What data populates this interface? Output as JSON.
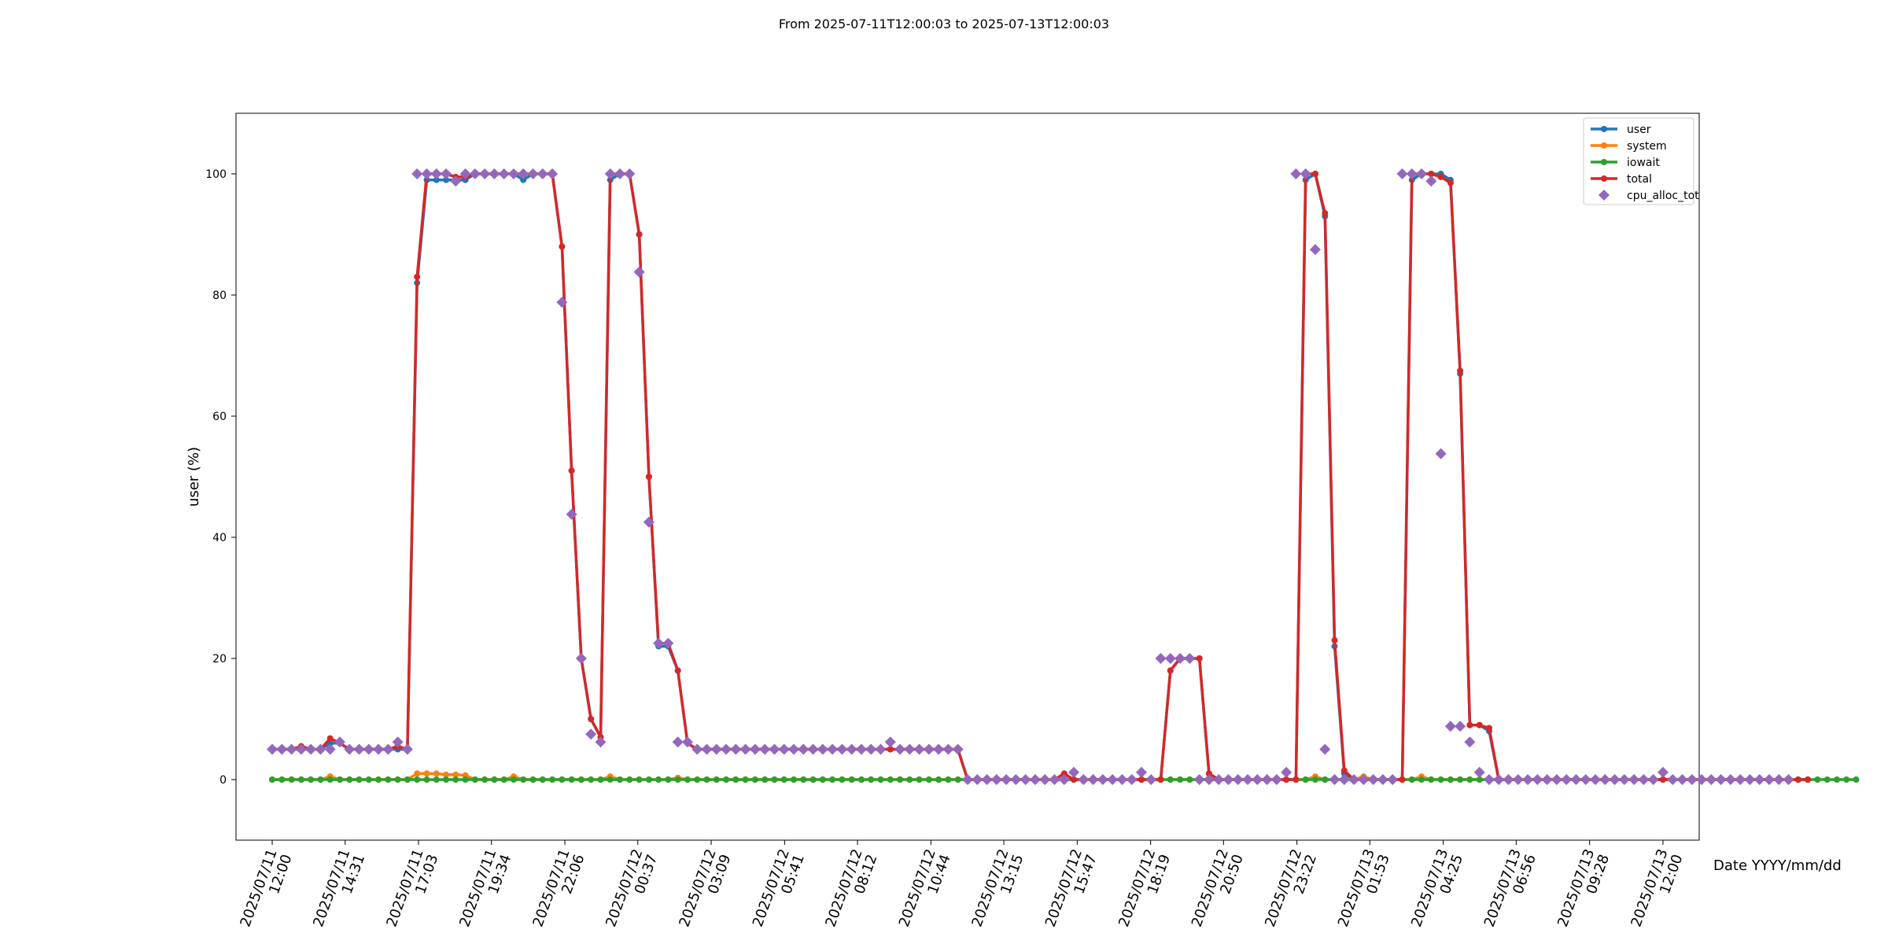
{
  "chart_data": {
    "type": "line",
    "title": "From 2025-07-11T12:00:03 to 2025-07-13T12:00:03",
    "xlabel": "Date YYYY/mm/dd",
    "ylabel": "user (%)",
    "ylim": [
      -10,
      110
    ],
    "yticks": [
      0,
      20,
      40,
      60,
      80,
      100
    ],
    "xlim": [
      "2025-07-11T10:45",
      "2025-07-13T13:15"
    ],
    "xticks": [
      {
        "t": "2025-07-11T12:00",
        "label": [
          "2025/07/11",
          "12:00"
        ]
      },
      {
        "t": "2025-07-11T14:31",
        "label": [
          "2025/07/11",
          "14:31"
        ]
      },
      {
        "t": "2025-07-11T17:03",
        "label": [
          "2025/07/11",
          "17:03"
        ]
      },
      {
        "t": "2025-07-11T19:34",
        "label": [
          "2025/07/11",
          "19:34"
        ]
      },
      {
        "t": "2025-07-11T22:06",
        "label": [
          "2025/07/11",
          "22:06"
        ]
      },
      {
        "t": "2025-07-12T00:37",
        "label": [
          "2025/07/12",
          "00:37"
        ]
      },
      {
        "t": "2025-07-12T03:09",
        "label": [
          "2025/07/12",
          "03:09"
        ]
      },
      {
        "t": "2025-07-12T05:41",
        "label": [
          "2025/07/12",
          "05:41"
        ]
      },
      {
        "t": "2025-07-12T08:12",
        "label": [
          "2025/07/12",
          "08:12"
        ]
      },
      {
        "t": "2025-07-12T10:44",
        "label": [
          "2025/07/12",
          "10:44"
        ]
      },
      {
        "t": "2025-07-12T13:15",
        "label": [
          "2025/07/12",
          "13:15"
        ]
      },
      {
        "t": "2025-07-12T15:47",
        "label": [
          "2025/07/12",
          "15:47"
        ]
      },
      {
        "t": "2025-07-12T18:19",
        "label": [
          "2025/07/12",
          "18:19"
        ]
      },
      {
        "t": "2025-07-12T20:50",
        "label": [
          "2025/07/12",
          "20:50"
        ]
      },
      {
        "t": "2025-07-12T23:22",
        "label": [
          "2025/07/12",
          "23:22"
        ]
      },
      {
        "t": "2025-07-13T01:53",
        "label": [
          "2025/07/13",
          "01:53"
        ]
      },
      {
        "t": "2025-07-13T04:25",
        "label": [
          "2025/07/13",
          "04:25"
        ]
      },
      {
        "t": "2025-07-13T06:56",
        "label": [
          "2025/07/13",
          "06:56"
        ]
      },
      {
        "t": "2025-07-13T09:28",
        "label": [
          "2025/07/13",
          "09:28"
        ]
      },
      {
        "t": "2025-07-13T12:00",
        "label": [
          "2025/07/13",
          "12:00"
        ]
      }
    ],
    "legend_position": "top-right",
    "grid": false,
    "start_time": "2025-07-11T12:00",
    "interval_minutes": 20,
    "series": [
      {
        "name": "user",
        "color": "#1f77b4",
        "style": "line-dot",
        "values": [
          5,
          5,
          5,
          5,
          5,
          5,
          6,
          6,
          5,
          5,
          5,
          5,
          5,
          5,
          5,
          82,
          99,
          99,
          99,
          99,
          99,
          100,
          100,
          100,
          100,
          100,
          99,
          100,
          100,
          100,
          88,
          51,
          20,
          10,
          7,
          99,
          100,
          100,
          90,
          50,
          22,
          22,
          18,
          6,
          5,
          5,
          5,
          5,
          5,
          5,
          5,
          5,
          5,
          5,
          5,
          5,
          5,
          5,
          5,
          5,
          5,
          5,
          5,
          5,
          5,
          5,
          5,
          5,
          5,
          5,
          5,
          5,
          0,
          0,
          0,
          0,
          0,
          0,
          0,
          0,
          0,
          0,
          0,
          0,
          0,
          0,
          0,
          0,
          0,
          0,
          0,
          0,
          0,
          18,
          20,
          20,
          20,
          1,
          0,
          0,
          0,
          0,
          0,
          0,
          0,
          0,
          0,
          99,
          100,
          93,
          22,
          1,
          0,
          0,
          0,
          0,
          0,
          0,
          99,
          100,
          100,
          100,
          99,
          67,
          9,
          9,
          8,
          0,
          0,
          0,
          0,
          0,
          0,
          0,
          0,
          0,
          0,
          0,
          0,
          0,
          0,
          0,
          0,
          0,
          0,
          0,
          0,
          0,
          0,
          0,
          0,
          0,
          0,
          0,
          0,
          0,
          0,
          0,
          0,
          0
        ]
      },
      {
        "name": "system",
        "color": "#ff7f0e",
        "style": "line-dot",
        "values": [
          0,
          0,
          0,
          0,
          0,
          0,
          0.5,
          0,
          0,
          0,
          0,
          0,
          0,
          0,
          0,
          1,
          1,
          1,
          0.8,
          0.8,
          0.7,
          0,
          0,
          0,
          0,
          0.5,
          0,
          0,
          0,
          0,
          0,
          0,
          0,
          0,
          0,
          0.5,
          0,
          0,
          0,
          0,
          0,
          0,
          0.3,
          0,
          0,
          0,
          0,
          0,
          0,
          0,
          0,
          0,
          0,
          0,
          0,
          0,
          0,
          0,
          0,
          0,
          0,
          0,
          0,
          0,
          0,
          0,
          0,
          0,
          0,
          0,
          0,
          0,
          0,
          0,
          0,
          0,
          0,
          0,
          0,
          0,
          0,
          0,
          0,
          0,
          0,
          0,
          0,
          0,
          0,
          0,
          0,
          0,
          0,
          0,
          0,
          0,
          0,
          0,
          0,
          0,
          0,
          0,
          0,
          0,
          0,
          0,
          0,
          0,
          0.5,
          0,
          0,
          0,
          0,
          0.5,
          0,
          0,
          0,
          0,
          0,
          0.5,
          0,
          0,
          0,
          0,
          0,
          0,
          0,
          0,
          0,
          0,
          0,
          0,
          0,
          0,
          0,
          0,
          0,
          0,
          0,
          0,
          0,
          0,
          0,
          0,
          0,
          0,
          0,
          0,
          0,
          0,
          0,
          0,
          0,
          0,
          0,
          0,
          0,
          0,
          0,
          0
        ]
      },
      {
        "name": "iowait",
        "color": "#2ca02c",
        "style": "line-dot",
        "values": [
          0,
          0,
          0,
          0,
          0,
          0,
          0,
          0,
          0,
          0,
          0,
          0,
          0,
          0,
          0,
          0,
          0,
          0,
          0,
          0,
          0,
          0,
          0,
          0,
          0,
          0,
          0,
          0,
          0,
          0,
          0,
          0,
          0,
          0,
          0,
          0,
          0,
          0,
          0,
          0,
          0,
          0,
          0,
          0,
          0,
          0,
          0,
          0,
          0,
          0,
          0,
          0,
          0,
          0,
          0,
          0,
          0,
          0,
          0,
          0,
          0,
          0,
          0,
          0,
          0,
          0,
          0,
          0,
          0,
          0,
          0,
          0,
          0,
          0,
          0,
          0,
          0,
          0,
          0,
          0,
          0,
          0,
          0,
          0,
          0,
          0,
          0,
          0,
          0,
          0,
          0,
          0,
          0,
          0,
          0,
          0,
          0,
          0,
          0,
          0,
          0,
          0,
          0,
          0,
          0,
          0,
          0,
          0,
          0,
          0,
          0,
          0,
          0,
          0,
          0,
          0,
          0,
          0,
          0,
          0,
          0,
          0,
          0,
          0,
          0,
          0,
          0,
          0,
          0,
          0,
          0,
          0,
          0,
          0,
          0,
          0,
          0,
          0,
          0,
          0,
          0,
          0,
          0,
          0,
          0,
          0,
          0,
          0,
          0,
          0,
          0,
          0,
          0,
          0,
          0,
          0,
          0,
          0,
          0,
          0,
          0,
          0,
          0,
          0,
          0
        ]
      },
      {
        "name": "total",
        "color": "#d62728",
        "style": "line-dot",
        "values": [
          5,
          5,
          5,
          5.5,
          5,
          5,
          6.8,
          6,
          5,
          5,
          5,
          5,
          5,
          5.5,
          5,
          83,
          100,
          100,
          100,
          99.5,
          99.5,
          100,
          100,
          100,
          100,
          100,
          100,
          100,
          100,
          100,
          88,
          51,
          20,
          10,
          7,
          100,
          100,
          100,
          90,
          50,
          22.5,
          22.5,
          18,
          6,
          5,
          5,
          5,
          5,
          5,
          5,
          5,
          5,
          5,
          5,
          5,
          5,
          5,
          5,
          5,
          5,
          5,
          5,
          5,
          5,
          5,
          5,
          5,
          5,
          5,
          5,
          5,
          5,
          0,
          0,
          0,
          0,
          0,
          0,
          0,
          0,
          0,
          0,
          1,
          0,
          0,
          0,
          0,
          0,
          0,
          0,
          0,
          0,
          0,
          18,
          20,
          20,
          20,
          1,
          0,
          0,
          0,
          0,
          0,
          0,
          0,
          0,
          0,
          100,
          100,
          93.5,
          23,
          1.5,
          0,
          0,
          0,
          0,
          0,
          0,
          100,
          100,
          100,
          99.5,
          98.5,
          67.5,
          9,
          9,
          8.5,
          0,
          0,
          0,
          0,
          0,
          0,
          0,
          0,
          0,
          0,
          0,
          0,
          0,
          0,
          0,
          0,
          0,
          0,
          0,
          0,
          0,
          0,
          0,
          0,
          0,
          0,
          0,
          0,
          0,
          0,
          0,
          0,
          0
        ]
      },
      {
        "name": "cpu_alloc_tot",
        "color": "#9467bd",
        "style": "diamond",
        "values": [
          5,
          5,
          5,
          5,
          5,
          5,
          5,
          6.2,
          5,
          5,
          5,
          5,
          5,
          6.2,
          5,
          100,
          100,
          100,
          100,
          98.8,
          100,
          100,
          100,
          100,
          100,
          100,
          100,
          100,
          100,
          100,
          78.8,
          43.8,
          20,
          7.5,
          6.2,
          100,
          100,
          100,
          83.8,
          42.5,
          22.5,
          22.5,
          6.2,
          6.2,
          5,
          5,
          5,
          5,
          5,
          5,
          5,
          5,
          5,
          5,
          5,
          5,
          5,
          5,
          5,
          5,
          5,
          5,
          5,
          5,
          6.2,
          5,
          5,
          5,
          5,
          5,
          5,
          5,
          0,
          0,
          0,
          0,
          0,
          0,
          0,
          0,
          0,
          0,
          0,
          1.2,
          0,
          0,
          0,
          0,
          0,
          0,
          1.2,
          0,
          20,
          20,
          20,
          20,
          0,
          0,
          0,
          0,
          0,
          0,
          0,
          0,
          0,
          1.2,
          100,
          100,
          87.5,
          5,
          0,
          0,
          0,
          0,
          0,
          0,
          0,
          100,
          100,
          100,
          98.8,
          53.8,
          8.8,
          8.8,
          6.2,
          1.2,
          0,
          0,
          0,
          0,
          0,
          0,
          0,
          0,
          0,
          0,
          0,
          0,
          0,
          0,
          0,
          0,
          0,
          0,
          1.2,
          0,
          0,
          0,
          0,
          0,
          0,
          0,
          0,
          0,
          0,
          0,
          0,
          0
        ]
      }
    ]
  }
}
